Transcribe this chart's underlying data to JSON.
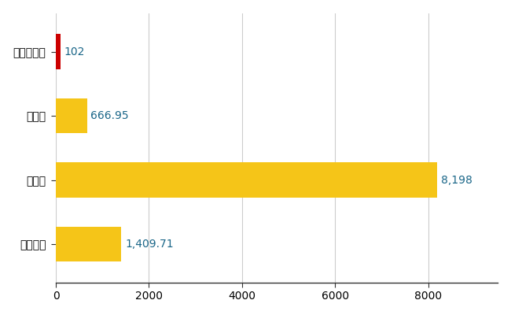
{
  "categories": [
    "野沢温泉村",
    "県平均",
    "県最大",
    "全国平均"
  ],
  "values": [
    102,
    666.95,
    8198,
    1409.71
  ],
  "bar_colors": [
    "#cc0000",
    "#f5c518",
    "#f5c518",
    "#f5c518"
  ],
  "value_labels": [
    "102",
    "666.95",
    "8,198",
    "1,409.71"
  ],
  "bar_height": 0.55,
  "xlim": [
    0,
    9500
  ],
  "xticks": [
    0,
    2000,
    4000,
    6000,
    8000
  ],
  "xtick_labels": [
    "0",
    "2000",
    "4000",
    "6000",
    "8000"
  ],
  "grid_color": "#cccccc",
  "background_color": "#ffffff",
  "label_fontsize": 10,
  "tick_fontsize": 10,
  "value_label_color": "#1a6688",
  "spine_color": "#333333"
}
